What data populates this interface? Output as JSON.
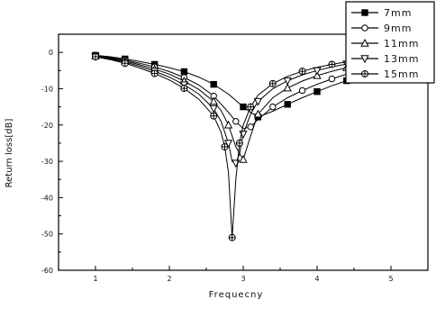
{
  "chart_data": {
    "type": "line",
    "xlabel": "Frequecny",
    "ylabel": "Return loss[dB]",
    "xlim": [
      0.5,
      5.5
    ],
    "ylim": [
      -60,
      5
    ],
    "xticks": [
      1,
      2,
      3,
      4,
      5
    ],
    "yticks": [
      0,
      -10,
      -20,
      -30,
      -40,
      -50,
      -60
    ],
    "xtick_labels": [
      "1",
      "2",
      "3",
      "4",
      "5"
    ],
    "ytick_labels": [
      "0",
      "-10",
      "-20",
      "-30",
      "-40",
      "-50",
      "-60"
    ],
    "grid": false,
    "legend_position": "top-right",
    "series": [
      {
        "name": "7mm",
        "marker": "filled-square",
        "x": [
          1.0,
          1.2,
          1.4,
          1.6,
          1.8,
          2.0,
          2.2,
          2.4,
          2.6,
          2.8,
          3.0,
          3.1,
          3.2,
          3.4,
          3.6,
          3.8,
          4.0,
          4.2,
          4.4,
          4.6,
          4.8,
          5.0,
          5.2,
          5.4
        ],
        "y": [
          -0.8,
          -1.2,
          -1.8,
          -2.5,
          -3.3,
          -4.2,
          -5.3,
          -6.8,
          -8.8,
          -11.5,
          -15.0,
          -16.5,
          -17.8,
          -16.2,
          -14.3,
          -12.5,
          -10.8,
          -9.2,
          -7.8,
          -6.5,
          -5.3,
          -4.3,
          -3.4,
          -2.6
        ]
      },
      {
        "name": "9mm",
        "marker": "open-circle",
        "x": [
          1.0,
          1.2,
          1.4,
          1.6,
          1.8,
          2.0,
          2.2,
          2.4,
          2.6,
          2.8,
          2.9,
          3.0,
          3.1,
          3.2,
          3.4,
          3.6,
          3.8,
          4.0,
          4.2,
          4.4,
          4.6,
          4.8,
          5.0,
          5.2,
          5.4
        ],
        "y": [
          -0.9,
          -1.4,
          -2.1,
          -3.0,
          -4.0,
          -5.3,
          -6.9,
          -9.0,
          -12.0,
          -16.5,
          -19.0,
          -21.0,
          -20.5,
          -18.5,
          -15.0,
          -12.5,
          -10.5,
          -8.8,
          -7.3,
          -6.0,
          -4.9,
          -4.0,
          -3.2,
          -2.6,
          -2.0
        ]
      },
      {
        "name": "11mm",
        "marker": "open-triangle-up",
        "x": [
          1.0,
          1.2,
          1.4,
          1.6,
          1.8,
          2.0,
          2.2,
          2.4,
          2.6,
          2.7,
          2.8,
          2.9,
          3.0,
          3.1,
          3.2,
          3.4,
          3.6,
          3.8,
          4.0,
          4.2,
          4.4,
          4.6,
          4.8,
          5.0,
          5.2,
          5.4
        ],
        "y": [
          -1.0,
          -1.6,
          -2.4,
          -3.4,
          -4.6,
          -6.0,
          -7.9,
          -10.2,
          -13.5,
          -16.0,
          -20.0,
          -26.0,
          -29.5,
          -23.0,
          -17.0,
          -12.5,
          -9.8,
          -7.9,
          -6.4,
          -5.2,
          -4.2,
          -3.4,
          -2.8,
          -2.3,
          -1.8,
          -1.4
        ]
      },
      {
        "name": "13mm",
        "marker": "open-triangle-down",
        "x": [
          1.0,
          1.2,
          1.4,
          1.6,
          1.8,
          2.0,
          2.2,
          2.4,
          2.6,
          2.7,
          2.8,
          2.85,
          2.9,
          2.95,
          3.0,
          3.1,
          3.2,
          3.4,
          3.6,
          3.8,
          4.0,
          4.2,
          4.4,
          4.6,
          4.8,
          5.0,
          5.2,
          5.4
        ],
        "y": [
          -1.1,
          -1.8,
          -2.7,
          -3.8,
          -5.2,
          -6.8,
          -8.9,
          -11.5,
          -15.5,
          -19.0,
          -25.0,
          -30.0,
          -30.5,
          -28.0,
          -22.5,
          -17.0,
          -13.5,
          -10.0,
          -7.8,
          -6.2,
          -5.0,
          -4.0,
          -3.2,
          -2.6,
          -2.1,
          -1.7,
          -1.3,
          -1.0
        ]
      },
      {
        "name": "15mm",
        "marker": "crossed-circle",
        "x": [
          1.0,
          1.2,
          1.4,
          1.6,
          1.8,
          2.0,
          2.2,
          2.4,
          2.6,
          2.7,
          2.75,
          2.8,
          2.85,
          2.9,
          2.95,
          3.0,
          3.1,
          3.2,
          3.4,
          3.6,
          3.8,
          4.0,
          4.2,
          4.4,
          4.6,
          4.8,
          5.0,
          5.2,
          5.4
        ],
        "y": [
          -1.2,
          -2.0,
          -3.0,
          -4.3,
          -5.8,
          -7.6,
          -9.9,
          -12.9,
          -17.5,
          -22.0,
          -26.0,
          -33.0,
          -51.0,
          -35.0,
          -25.0,
          -20.0,
          -15.0,
          -11.8,
          -8.6,
          -6.6,
          -5.2,
          -4.1,
          -3.3,
          -2.6,
          -2.1,
          -1.7,
          -1.3,
          -1.0,
          -0.8
        ]
      }
    ]
  }
}
